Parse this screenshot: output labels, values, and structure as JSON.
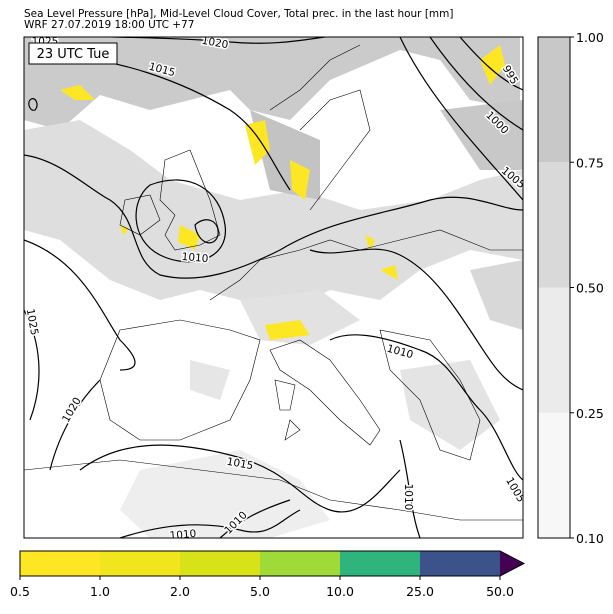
{
  "header": {
    "title": "Sea Level Pressure [hPa], Mid-Level Cloud Cover, Total prec. in the last hour [mm]",
    "subtitle": "WRF 27.07.2019 18:00 UTC +77"
  },
  "map": {
    "time_label": "23 UTC Tue",
    "isobar_labels": [
      "1025",
      "1020",
      "1015",
      "995",
      "1000",
      "1005",
      "1010",
      "1025",
      "1010",
      "1020",
      "1015",
      "1010",
      "1005",
      "1010",
      "1010"
    ]
  },
  "cloud_colorbar": {
    "colors": [
      "#f7f7f7",
      "#ebebeb",
      "#d9d9d9",
      "#c8c8c8"
    ],
    "ticks": [
      "0.10",
      "0.25",
      "0.50",
      "0.75",
      "1.00"
    ]
  },
  "precip_colorbar": {
    "colors": [
      "#fde725",
      "#f1e51d",
      "#d8e219",
      "#a0da39",
      "#2fb47c",
      "#3b528b"
    ],
    "extend_color": "#440154",
    "ticks": [
      "0.5",
      "1.0",
      "2.0",
      "5.0",
      "10.0",
      "25.0",
      "50.0"
    ]
  }
}
